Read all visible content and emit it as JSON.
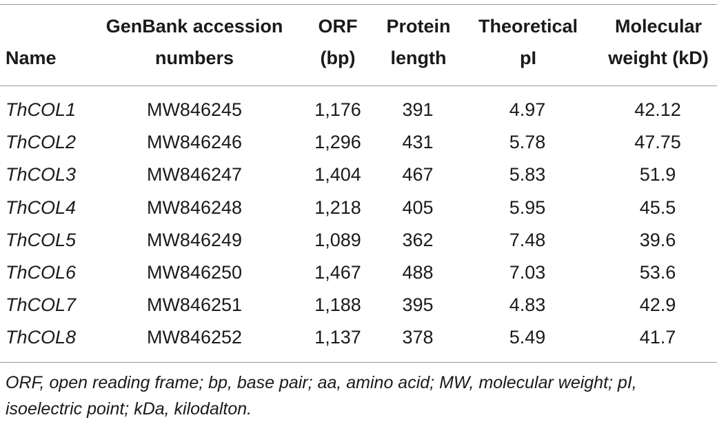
{
  "table": {
    "headers": {
      "name": [
        "Name"
      ],
      "accession": [
        "GenBank accession",
        "numbers"
      ],
      "orf": [
        "ORF",
        "(bp)"
      ],
      "protein_length": [
        "Protein",
        "length"
      ],
      "pi": [
        "Theoretical",
        "pI"
      ],
      "mw": [
        "Molecular",
        "weight (kD)"
      ]
    },
    "rows": [
      {
        "name": "ThCOL1",
        "accession": "MW846245",
        "orf": "1,176",
        "protein_length": "391",
        "pi": "4.97",
        "mw": "42.12"
      },
      {
        "name": "ThCOL2",
        "accession": "MW846246",
        "orf": "1,296",
        "protein_length": "431",
        "pi": "5.78",
        "mw": "47.75"
      },
      {
        "name": "ThCOL3",
        "accession": "MW846247",
        "orf": "1,404",
        "protein_length": "467",
        "pi": "5.83",
        "mw": "51.9"
      },
      {
        "name": "ThCOL4",
        "accession": "MW846248",
        "orf": "1,218",
        "protein_length": "405",
        "pi": "5.95",
        "mw": "45.5"
      },
      {
        "name": "ThCOL5",
        "accession": "MW846249",
        "orf": "1,089",
        "protein_length": "362",
        "pi": "7.48",
        "mw": "39.6"
      },
      {
        "name": "ThCOL6",
        "accession": "MW846250",
        "orf": "1,467",
        "protein_length": "488",
        "pi": "7.03",
        "mw": "53.6"
      },
      {
        "name": "ThCOL7",
        "accession": "MW846251",
        "orf": "1,188",
        "protein_length": "395",
        "pi": "4.83",
        "mw": "42.9"
      },
      {
        "name": "ThCOL8",
        "accession": "MW846252",
        "orf": "1,137",
        "protein_length": "378",
        "pi": "5.49",
        "mw": "41.7"
      }
    ],
    "footnote": [
      "ORF, open reading frame; bp, base pair; aa, amino acid; MW, molecular weight; pI,",
      "isoelectric point; kDa, kilodalton."
    ]
  }
}
